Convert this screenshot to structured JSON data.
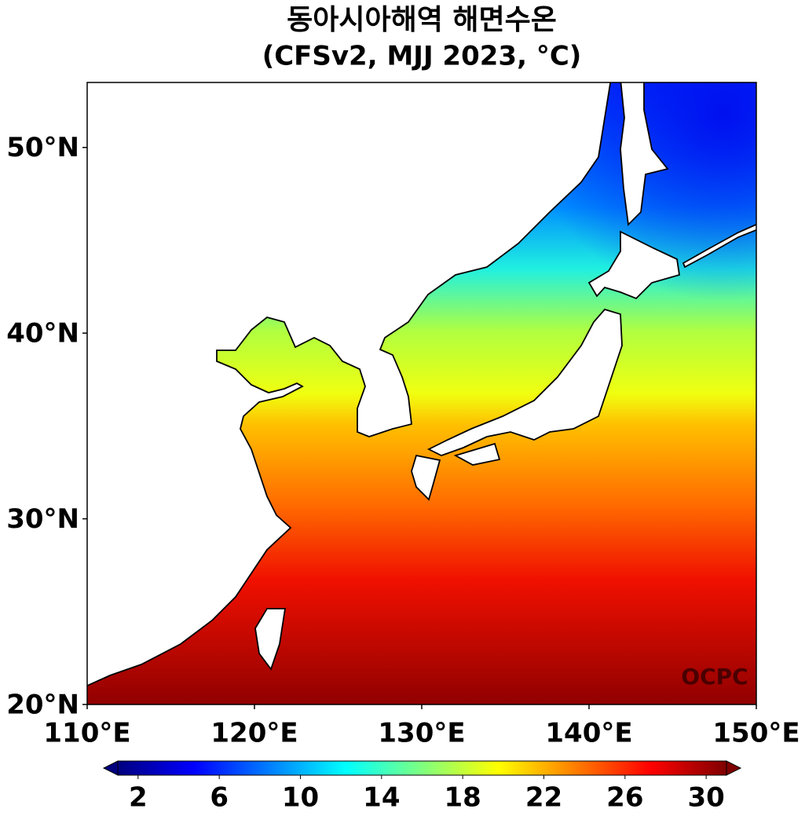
{
  "chart_data": {
    "type": "map",
    "title": "동아시아해역 해면수온",
    "subtitle": "(CFSv2, MJJ 2023, °C)",
    "xlim": [
      110,
      150
    ],
    "ylim": [
      20,
      53.5
    ],
    "xticks": [
      {
        "value": 110,
        "label": "110°E"
      },
      {
        "value": 120,
        "label": "120°E"
      },
      {
        "value": 130,
        "label": "130°E"
      },
      {
        "value": 140,
        "label": "140°E"
      },
      {
        "value": 150,
        "label": "150°E"
      }
    ],
    "yticks": [
      {
        "value": 20,
        "label": "20°N"
      },
      {
        "value": 30,
        "label": "30°N"
      },
      {
        "value": 40,
        "label": "40°N"
      },
      {
        "value": 50,
        "label": "50°N"
      }
    ],
    "colorbar": {
      "lim": [
        1,
        31
      ],
      "ticks": [
        2,
        6,
        10,
        14,
        18,
        22,
        26,
        30
      ],
      "colors": [
        "#00007f",
        "#0000ff",
        "#007fff",
        "#00ffff",
        "#7fff7f",
        "#ffff00",
        "#ff7f00",
        "#ff0000",
        "#7f0000"
      ]
    },
    "watermark": "OCPC"
  }
}
